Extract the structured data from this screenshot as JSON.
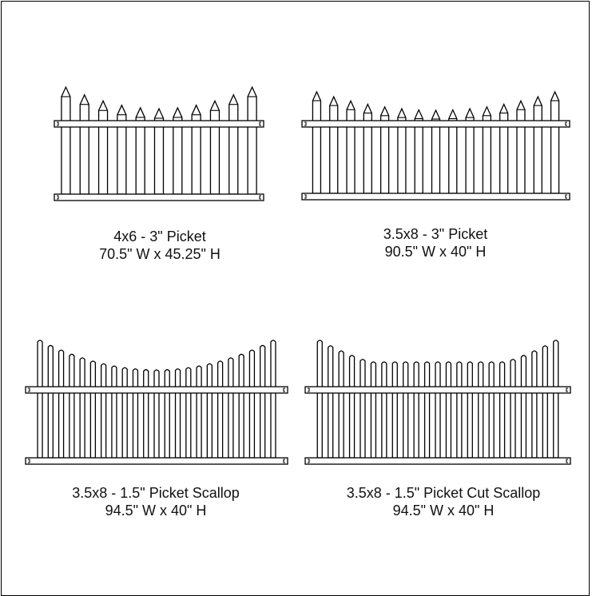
{
  "fences": [
    {
      "id": "4x6-3-picket",
      "name": "4x6 - 3\" Picket",
      "dimensions": "70.5\" W x 45.25\" H",
      "picket_style": "pointed",
      "picket_count": 11,
      "profile": "scallop"
    },
    {
      "id": "3-5x8-3-picket",
      "name": "3.5x8 - 3\" Picket",
      "dimensions": "90.5\" W x 40\" H",
      "picket_style": "pointed",
      "picket_count": 15,
      "profile": "scallop"
    },
    {
      "id": "3-5x8-1-5-picket-scallop",
      "name": "3.5x8 - 1.5\" Picket Scallop",
      "dimensions": "94.5\" W x 40\" H",
      "picket_style": "rounded",
      "picket_count": 23,
      "profile": "scallop"
    },
    {
      "id": "3-5x8-1-5-picket-cut-scallop",
      "name": "3.5x8 - 1.5\" Picket Cut Scallop",
      "dimensions": "94.5\" W x 40\" H",
      "picket_style": "rounded",
      "picket_count": 23,
      "profile": "cut-scallop"
    }
  ]
}
